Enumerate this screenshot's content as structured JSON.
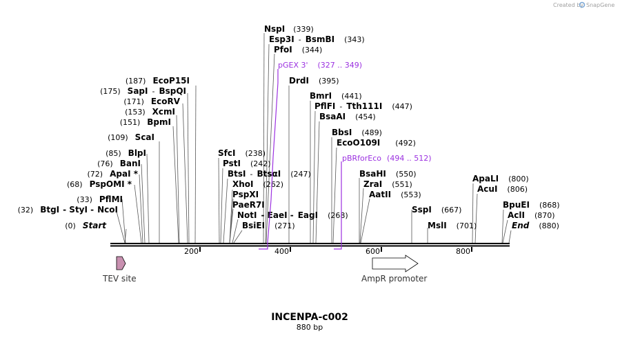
{
  "credit": {
    "prefix": "Created by",
    "brand": "SnapGene"
  },
  "title": "INCENPA-c002",
  "subtitle": "880 bp",
  "sites": [
    {
      "name": "NspI",
      "pos": "(339)"
    },
    {
      "name": "Esp3I",
      "sep": "-",
      "name2": "BsmBI",
      "pos": "(343)"
    },
    {
      "name": "PfoI",
      "pos": "(344)"
    },
    {
      "name": "DrdI",
      "pos": "(395)"
    },
    {
      "name": "EcoP15I",
      "pos": "(187)",
      "left": true
    },
    {
      "name": "SapI",
      "sep": "-",
      "name2": "BspQI",
      "pos": "(175)",
      "left": true
    },
    {
      "name": "EcoRV",
      "pos": "(171)",
      "left": true
    },
    {
      "name": "XcmI",
      "pos": "(153)",
      "left": true
    },
    {
      "name": "BpmI",
      "pos": "(151)",
      "left": true
    },
    {
      "name": "ScaI",
      "pos": "(109)",
      "left": true
    },
    {
      "name": "BlpI",
      "pos": "(85)",
      "left": true
    },
    {
      "name": "BanI",
      "pos": "(76)",
      "left": true
    },
    {
      "name": "ApaI *",
      "pos": "(72)",
      "left": true
    },
    {
      "name": "PspOMI *",
      "pos": "(68)",
      "left": true
    },
    {
      "name": "PflMI",
      "pos": "(33)",
      "left": true
    },
    {
      "name": "BtgI",
      "sep": "- StyI -",
      "name2": "NcoI",
      "pos": "(32)",
      "left": true
    },
    {
      "name": "Start",
      "pos": "(0)",
      "left": true,
      "italic": true
    },
    {
      "name": "BmrI",
      "pos": "(441)"
    },
    {
      "name": "PflFI",
      "sep": "-",
      "name2": "Tth111I",
      "pos": "(447)"
    },
    {
      "name": "BsaAI",
      "pos": "(454)"
    },
    {
      "name": "BbsI",
      "pos": "(489)"
    },
    {
      "name": "EcoO109I",
      "pos": "(492)"
    },
    {
      "name": "SfcI",
      "pos": "(238)"
    },
    {
      "name": "PstI",
      "pos": "(242)"
    },
    {
      "name": "BtsI",
      "sep": "-",
      "name2": "BtsαI",
      "pos": "(247)"
    },
    {
      "name": "XhoI",
      "pos": "(262)"
    },
    {
      "name": "PspXI",
      "pos": ""
    },
    {
      "name": "PaeR7I",
      "pos": ""
    },
    {
      "name": "NotI",
      "sep": "- EaeI -",
      "name2": "EagI",
      "pos": "(268)"
    },
    {
      "name": "BsiEI",
      "pos": "(271)"
    },
    {
      "name": "BsaHI",
      "pos": "(550)"
    },
    {
      "name": "ZraI",
      "pos": "(551)"
    },
    {
      "name": "AatII",
      "pos": "(553)"
    },
    {
      "name": "SspI",
      "pos": "(667)"
    },
    {
      "name": "MslI",
      "pos": "(701)"
    },
    {
      "name": "ApaLI",
      "pos": "(800)"
    },
    {
      "name": "AcuI",
      "pos": "(806)"
    },
    {
      "name": "BpuEI",
      "pos": "(868)"
    },
    {
      "name": "AclI",
      "pos": "(870)"
    },
    {
      "name": "End",
      "pos": "(880)",
      "italic": true
    }
  ],
  "primers": [
    {
      "name": "pGEX 3'",
      "range": "(327 .. 349)"
    },
    {
      "name": "pBRforEco",
      "range": "(494 .. 512)"
    }
  ],
  "ticks": [
    "200",
    "400",
    "600",
    "800"
  ],
  "features": [
    {
      "name": "TEV site",
      "color": "#c890b0"
    },
    {
      "name": "AmpR promoter",
      "color": "#ffffff"
    }
  ],
  "colors": {
    "primer": "#9b30e0",
    "backbone": "#000000"
  }
}
